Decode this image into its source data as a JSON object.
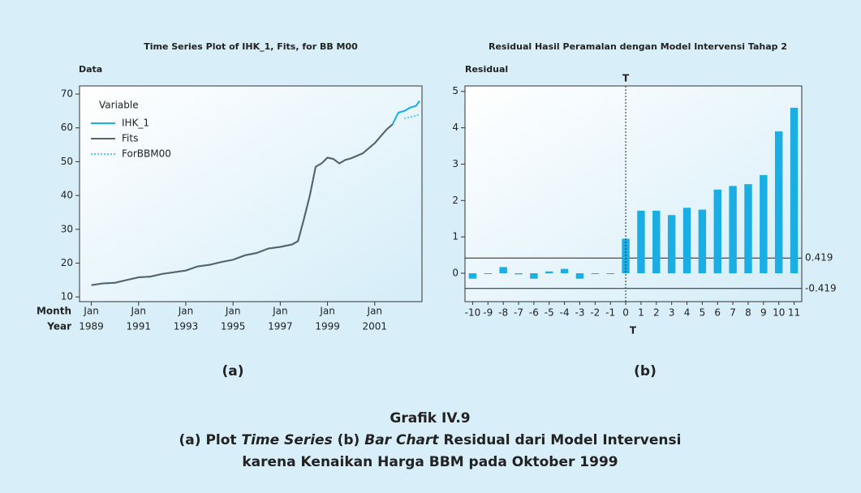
{
  "chart_data": [
    {
      "type": "line",
      "title": "Time Series Plot of IHK_1, Fits, for BB M00",
      "y_label": "Data",
      "x_month_label": "Month",
      "x_year_label": "Year",
      "x_month": "Jan",
      "legend_title": "Variable",
      "legend": "upper left",
      "x": [
        1989,
        1989.5,
        1990,
        1990.5,
        1991,
        1991.5,
        1992,
        1992.5,
        1993,
        1993.5,
        1994,
        1994.5,
        1995,
        1995.5,
        1996,
        1996.5,
        1997,
        1997.5,
        1997.75,
        1998,
        1998.25,
        1998.5,
        1998.75,
        1999,
        1999.25,
        1999.5,
        1999.75,
        2000,
        2000.5,
        2001,
        2001.5,
        2001.75,
        2002,
        2002.25,
        2002.5,
        2002.75,
        2002.9
      ],
      "series": [
        {
          "name": "IHK_1",
          "color": "#1aaee5",
          "style": "solid",
          "values": [
            13.5,
            14,
            14.2,
            15,
            15.8,
            16,
            16.8,
            17.3,
            17.8,
            19,
            19.5,
            20.3,
            21,
            22.3,
            23,
            24.3,
            24.8,
            25.5,
            26.5,
            33,
            40,
            48.5,
            49.5,
            51.2,
            50.8,
            49.5,
            50.5,
            51,
            52.5,
            55.5,
            59.5,
            61,
            64.5,
            65,
            66,
            66.5,
            68
          ]
        },
        {
          "name": "Fits",
          "color": "#5b6168",
          "style": "solid",
          "values": [
            13.5,
            14,
            14.2,
            15,
            15.8,
            16,
            16.8,
            17.3,
            17.8,
            19,
            19.5,
            20.3,
            21,
            22.3,
            23,
            24.3,
            24.8,
            25.5,
            26.5,
            33,
            40,
            48.5,
            49.5,
            51.2,
            50.8,
            49.5,
            50.5,
            51,
            52.5,
            55.5,
            59.5,
            61,
            null,
            null,
            null,
            null,
            null
          ]
        },
        {
          "name": "ForBBM00",
          "color": "#5cc8ee",
          "style": "dotted",
          "values": [
            null,
            null,
            null,
            null,
            null,
            null,
            null,
            null,
            null,
            null,
            null,
            null,
            null,
            null,
            null,
            null,
            null,
            null,
            null,
            null,
            null,
            null,
            null,
            null,
            null,
            null,
            null,
            null,
            null,
            null,
            null,
            null,
            null,
            62.8,
            63.2,
            63.6,
            64
          ]
        }
      ],
      "xlim": [
        1988.5,
        2003
      ],
      "xticks": [
        1989,
        1991,
        1993,
        1995,
        1997,
        1999,
        2001
      ],
      "ylim": [
        8.6,
        72.4
      ],
      "yticks": [
        10,
        20,
        30,
        40,
        50,
        60,
        70
      ],
      "caption": "(a)"
    },
    {
      "type": "bar",
      "title": "Residual Hasil Peramalan dengan Model Intervensi Tahap 2",
      "y_label": "Residual",
      "x_label": "T",
      "categories": [
        "-10",
        "-9",
        "-8",
        "-7",
        "-6",
        "-5",
        "-4",
        "-3",
        "-2",
        "-1",
        "0",
        "1",
        "2",
        "3",
        "4",
        "5",
        "6",
        "7",
        "8",
        "9",
        "10",
        "11"
      ],
      "values": [
        -0.15,
        -0.02,
        0.17,
        -0.03,
        -0.15,
        0.05,
        0.12,
        -0.15,
        -0.02,
        -0.01,
        0.95,
        1.72,
        1.72,
        1.6,
        1.8,
        1.75,
        2.3,
        2.4,
        2.45,
        2.7,
        3.9,
        4.55
      ],
      "color": "#1aaee5",
      "ylim": [
        -0.78,
        5.15
      ],
      "yticks": [
        0,
        1,
        2,
        3,
        4,
        5
      ],
      "reference_lines": [
        0.419,
        -0.419
      ],
      "vline_category": "0",
      "vline_label": "T",
      "caption": "(b)"
    }
  ],
  "caption": {
    "title": "Grafik IV.9",
    "line2": [
      "(a) Plot ",
      "Time Series",
      " (b) ",
      "Bar Chart",
      " Residual dari Model Intervensi"
    ],
    "line3": "karena Kenaikan Harga BBM pada Oktober 1999"
  }
}
